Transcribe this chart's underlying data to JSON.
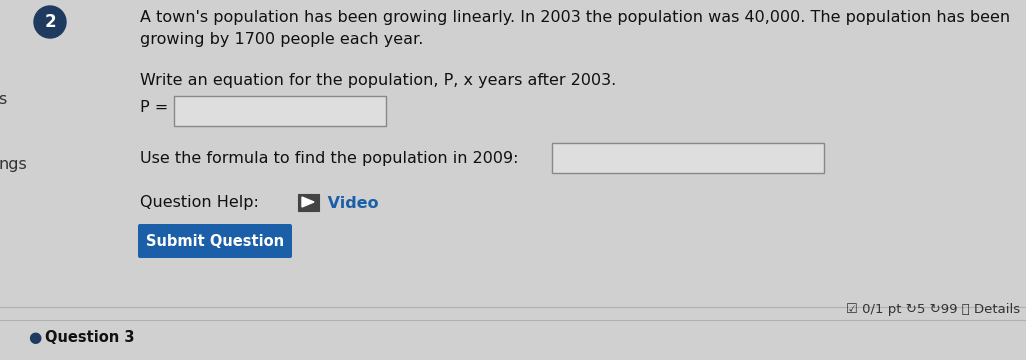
{
  "bg_color": "#d0d0d0",
  "question_number": "2",
  "question_number_bg": "#1e3a5f",
  "question_number_color": "#ffffff",
  "left_clip_text_s": "s",
  "left_clip_text_ngs": "ngs",
  "title_text": "A town's population has been growing linearly. In 2003 the population was 40,000. The population has been\ngrowing by 1700 people each year.",
  "subtitle_text": "Write an equation for the population, P, x years after 2003.",
  "p_label": "P =",
  "formula_text": "Use the formula to find the population in 2009:",
  "help_label": "Question Help:",
  "video_text": " Video",
  "submit_text": "Submit Question",
  "submit_bg": "#1a5fa8",
  "submit_color": "#ffffff",
  "bottom_bullet": "●",
  "bottom_text": "Question 3",
  "score_text": "☑ 0/1 pt ↻5 ↻99 ⓘ Details",
  "title_fontsize": 11.5,
  "body_fontsize": 11.5,
  "small_fontsize": 10
}
